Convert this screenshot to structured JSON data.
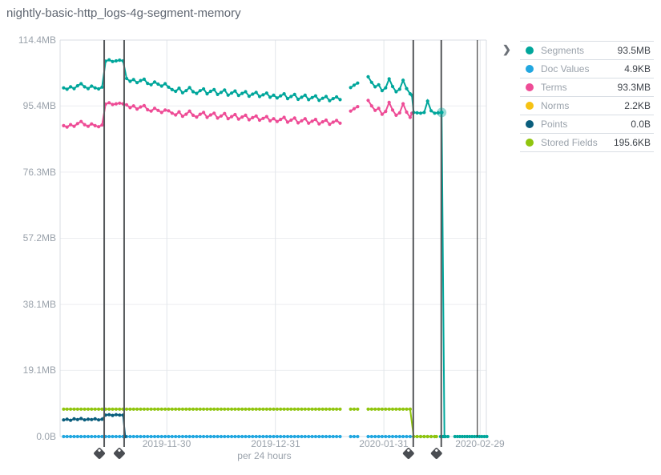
{
  "title": "nightly-basic-http_logs-4g-segment-memory",
  "legend": {
    "expander_icon": "❯",
    "items": [
      {
        "label": "Segments",
        "value": "93.5MB",
        "color": "#00a69b"
      },
      {
        "label": "Doc Values",
        "value": "4.9KB",
        "color": "#22a7e0"
      },
      {
        "label": "Terms",
        "value": "93.3MB",
        "color": "#ee4c96"
      },
      {
        "label": "Norms",
        "value": "2.2KB",
        "color": "#f6c213"
      },
      {
        "label": "Points",
        "value": "0.0B",
        "color": "#0a5e7d"
      },
      {
        "label": "Stored Fields",
        "value": "195.6KB",
        "color": "#90c50e"
      }
    ]
  },
  "chart_data": {
    "type": "line",
    "title": "nightly-basic-http_logs-4g-segment-memory",
    "xlabel": "per 24 hours",
    "ylabel": "",
    "x_axis": {
      "domain_days": [
        0,
        122
      ],
      "ticks": [
        {
          "label": "2019-11-30",
          "day": 30.5
        },
        {
          "label": "2019-12-31",
          "day": 61.5
        },
        {
          "label": "2020-01-31",
          "day": 92.5
        },
        {
          "label": "2020-02-29",
          "day": 120
        }
      ]
    },
    "y_axis": {
      "max_mb": 114.4,
      "ticks": [
        {
          "label": "114.4MB",
          "mb": 114.4
        },
        {
          "label": "95.4MB",
          "mb": 95.4
        },
        {
          "label": "76.3MB",
          "mb": 76.3
        },
        {
          "label": "57.2MB",
          "mb": 57.2
        },
        {
          "label": "38.1MB",
          "mb": 38.1
        },
        {
          "label": "19.1MB",
          "mb": 19.1
        },
        {
          "label": "0.0B",
          "mb": 0
        }
      ]
    },
    "annotations": [
      {
        "day": 12.6,
        "style": "tag"
      },
      {
        "day": 18.3,
        "style": "tag"
      },
      {
        "day": 100.9,
        "style": "tag"
      },
      {
        "day": 108.9,
        "style": "tag"
      },
      {
        "day": 119.2,
        "style": "line"
      }
    ],
    "endpoint": {
      "series": "Segments",
      "day": 109,
      "value_mb": 93.5
    },
    "series": [
      {
        "name": "Doc Values",
        "color": "#22a7e0",
        "segments": [
          {
            "from": 1,
            "to": 80,
            "value": 0
          },
          {
            "from": 83,
            "to": 85,
            "value": 0
          },
          {
            "from": 88,
            "to": 107,
            "value": 0
          }
        ]
      },
      {
        "name": "Stored Fields",
        "color": "#90c50e",
        "segments": [
          {
            "from": 1,
            "to": 80,
            "value": 7.9
          },
          {
            "from": 83,
            "to": 85,
            "value": 7.9
          },
          {
            "from": 88,
            "to": 100,
            "value": 7.9
          },
          [
            [
              100,
              7.9
            ],
            [
              101,
              0
            ],
            [
              102,
              0
            ],
            [
              103,
              0
            ],
            [
              104,
              0
            ],
            [
              105,
              0
            ],
            [
              106,
              0
            ],
            [
              107,
              0
            ],
            [
              107.5,
              0
            ]
          ]
        ]
      },
      {
        "name": "Norms",
        "color": "#f6c213",
        "segments": []
      },
      {
        "name": "Points",
        "color": "#0a5e7d",
        "segments": [
          [
            [
              1,
              4.8
            ],
            [
              2,
              5.0
            ],
            [
              3,
              4.7
            ],
            [
              4,
              5.1
            ],
            [
              5,
              4.9
            ],
            [
              6,
              5.2
            ],
            [
              7,
              4.8
            ],
            [
              8,
              5.0
            ],
            [
              9,
              4.9
            ],
            [
              10,
              5.1
            ],
            [
              11,
              4.8
            ],
            [
              12,
              5.0
            ],
            [
              13,
              6.2
            ],
            [
              14,
              6.3
            ],
            [
              15,
              6.1
            ],
            [
              16,
              6.3
            ],
            [
              17,
              6.2
            ],
            [
              18,
              6.2
            ],
            [
              18.6,
              0
            ]
          ]
        ]
      },
      {
        "name": "Terms",
        "color": "#ee4c96",
        "segments": [
          [
            [
              1,
              89.7
            ],
            [
              2,
              89.3
            ],
            [
              3,
              90.0
            ],
            [
              4,
              89.5
            ],
            [
              5,
              90.3
            ],
            [
              6,
              90.9
            ],
            [
              7,
              90.0
            ],
            [
              8,
              89.5
            ],
            [
              9,
              90.2
            ],
            [
              10,
              89.7
            ],
            [
              11,
              89.4
            ],
            [
              12,
              89.9
            ],
            [
              13,
              95.9
            ],
            [
              14,
              96.3
            ],
            [
              15,
              95.8
            ],
            [
              16,
              96.0
            ],
            [
              17,
              96.2
            ],
            [
              18,
              96.0
            ],
            [
              19,
              95.7
            ],
            [
              20,
              94.9
            ],
            [
              21,
              95.4
            ],
            [
              22,
              94.5
            ],
            [
              23,
              95.1
            ],
            [
              24,
              95.5
            ],
            [
              25,
              94.3
            ],
            [
              26,
              93.9
            ],
            [
              27,
              94.7
            ],
            [
              28,
              94.1
            ],
            [
              29,
              93.5
            ],
            [
              30,
              94.2
            ],
            [
              31,
              94.0
            ],
            [
              32,
              93.3
            ],
            [
              33,
              92.8
            ],
            [
              34,
              93.7
            ],
            [
              35,
              92.4
            ],
            [
              36,
              93.0
            ],
            [
              37,
              93.9
            ],
            [
              38,
              92.7
            ],
            [
              39,
              92.2
            ],
            [
              40,
              93.0
            ],
            [
              41,
              93.5
            ],
            [
              42,
              92.1
            ],
            [
              43,
              92.8
            ],
            [
              44,
              93.3
            ],
            [
              45,
              91.9
            ],
            [
              46,
              92.5
            ],
            [
              47,
              93.2
            ],
            [
              48,
              91.7
            ],
            [
              49,
              92.3
            ],
            [
              50,
              92.9
            ],
            [
              51,
              91.6
            ],
            [
              52,
              92.2
            ],
            [
              53,
              92.7
            ],
            [
              54,
              91.4
            ],
            [
              55,
              92.0
            ],
            [
              56,
              92.5
            ],
            [
              57,
              91.3
            ],
            [
              58,
              91.8
            ],
            [
              59,
              92.3
            ],
            [
              60,
              91.1
            ],
            [
              61,
              91.7
            ],
            [
              62,
              90.9
            ],
            [
              63,
              91.5
            ],
            [
              64,
              92.1
            ],
            [
              65,
              90.7
            ],
            [
              66,
              91.3
            ],
            [
              67,
              91.9
            ],
            [
              68,
              90.5
            ],
            [
              69,
              91.1
            ],
            [
              70,
              91.7
            ],
            [
              71,
              90.4
            ],
            [
              72,
              91.0
            ],
            [
              73,
              91.5
            ],
            [
              74,
              90.2
            ],
            [
              75,
              90.8
            ],
            [
              76,
              91.3
            ],
            [
              77,
              90.1
            ],
            [
              78,
              90.7
            ],
            [
              79,
              91.2
            ],
            [
              80,
              90.4
            ]
          ],
          [
            [
              83,
              93.9
            ],
            [
              84,
              94.6
            ],
            [
              85,
              95.2
            ]
          ],
          [
            [
              88,
              97.0
            ],
            [
              89,
              95.4
            ],
            [
              90,
              94.1
            ],
            [
              91,
              94.7
            ],
            [
              92,
              93.0
            ],
            [
              93,
              93.8
            ],
            [
              94,
              96.4
            ],
            [
              95,
              94.2
            ],
            [
              96,
              92.7
            ],
            [
              97,
              93.4
            ],
            [
              98,
              96.0
            ],
            [
              99,
              93.6
            ],
            [
              100,
              92.1
            ],
            [
              100.5,
              93.3
            ]
          ]
        ]
      },
      {
        "name": "Segments",
        "color": "#00a69b",
        "segments": [
          [
            [
              1,
              100.6
            ],
            [
              2,
              100.2
            ],
            [
              3,
              100.9
            ],
            [
              4,
              100.4
            ],
            [
              5,
              101.2
            ],
            [
              6,
              101.8
            ],
            [
              7,
              100.9
            ],
            [
              8,
              100.4
            ],
            [
              9,
              101.1
            ],
            [
              10,
              100.6
            ],
            [
              11,
              100.3
            ],
            [
              12,
              100.8
            ],
            [
              13,
              108.3
            ],
            [
              14,
              108.7
            ],
            [
              15,
              108.2
            ],
            [
              16,
              108.4
            ],
            [
              17,
              108.6
            ],
            [
              18,
              108.4
            ],
            [
              19,
              103.3
            ],
            [
              20,
              102.5
            ],
            [
              21,
              103.0
            ],
            [
              22,
              102.1
            ],
            [
              23,
              102.7
            ],
            [
              24,
              103.1
            ],
            [
              25,
              101.9
            ],
            [
              26,
              101.5
            ],
            [
              27,
              102.3
            ],
            [
              28,
              101.7
            ],
            [
              29,
              101.1
            ],
            [
              30,
              101.8
            ],
            [
              31,
              100.8
            ],
            [
              32,
              100.1
            ],
            [
              33,
              99.6
            ],
            [
              34,
              100.5
            ],
            [
              35,
              99.2
            ],
            [
              36,
              99.8
            ],
            [
              37,
              100.7
            ],
            [
              38,
              99.5
            ],
            [
              39,
              99.0
            ],
            [
              40,
              99.8
            ],
            [
              41,
              100.3
            ],
            [
              42,
              98.9
            ],
            [
              43,
              99.6
            ],
            [
              44,
              100.1
            ],
            [
              45,
              98.7
            ],
            [
              46,
              99.3
            ],
            [
              47,
              100.0
            ],
            [
              48,
              98.5
            ],
            [
              49,
              99.1
            ],
            [
              50,
              99.7
            ],
            [
              51,
              98.4
            ],
            [
              52,
              99.0
            ],
            [
              53,
              99.5
            ],
            [
              54,
              98.2
            ],
            [
              55,
              98.8
            ],
            [
              56,
              99.3
            ],
            [
              57,
              98.1
            ],
            [
              58,
              98.6
            ],
            [
              59,
              99.1
            ],
            [
              60,
              97.9
            ],
            [
              61,
              98.5
            ],
            [
              62,
              97.7
            ],
            [
              63,
              98.3
            ],
            [
              64,
              98.9
            ],
            [
              65,
              97.5
            ],
            [
              66,
              98.1
            ],
            [
              67,
              98.7
            ],
            [
              68,
              97.3
            ],
            [
              69,
              97.9
            ],
            [
              70,
              98.5
            ],
            [
              71,
              97.2
            ],
            [
              72,
              97.8
            ],
            [
              73,
              98.3
            ],
            [
              74,
              97.0
            ],
            [
              75,
              97.6
            ],
            [
              76,
              98.1
            ],
            [
              77,
              96.9
            ],
            [
              78,
              97.5
            ],
            [
              79,
              98.0
            ],
            [
              80,
              97.2
            ]
          ],
          [
            [
              83,
              100.7
            ],
            [
              84,
              101.4
            ],
            [
              85,
              102.0
            ]
          ],
          [
            [
              88,
              103.8
            ],
            [
              89,
              102.2
            ],
            [
              90,
              100.9
            ],
            [
              91,
              101.5
            ],
            [
              92,
              99.8
            ],
            [
              93,
              100.6
            ],
            [
              94,
              103.2
            ],
            [
              95,
              101.0
            ],
            [
              96,
              99.5
            ],
            [
              97,
              100.2
            ],
            [
              98,
              102.8
            ],
            [
              99,
              100.4
            ],
            [
              100,
              98.9
            ],
            [
              100.5,
              98.5
            ],
            [
              101,
              93.5
            ],
            [
              102,
              93.4
            ],
            [
              103,
              93.3
            ],
            [
              104,
              93.5
            ],
            [
              105,
              96.8
            ],
            [
              106,
              94.0
            ],
            [
              107,
              93.3
            ],
            [
              108,
              93.4
            ],
            [
              109,
              93.5
            ],
            [
              109.8,
              0
            ]
          ],
          {
            "from": 108.7,
            "to": 110.8,
            "value": 0,
            "step": 0.7
          },
          {
            "from": 112.8,
            "to": 121.9,
            "value": 0,
            "step": 0.7
          }
        ]
      }
    ]
  }
}
